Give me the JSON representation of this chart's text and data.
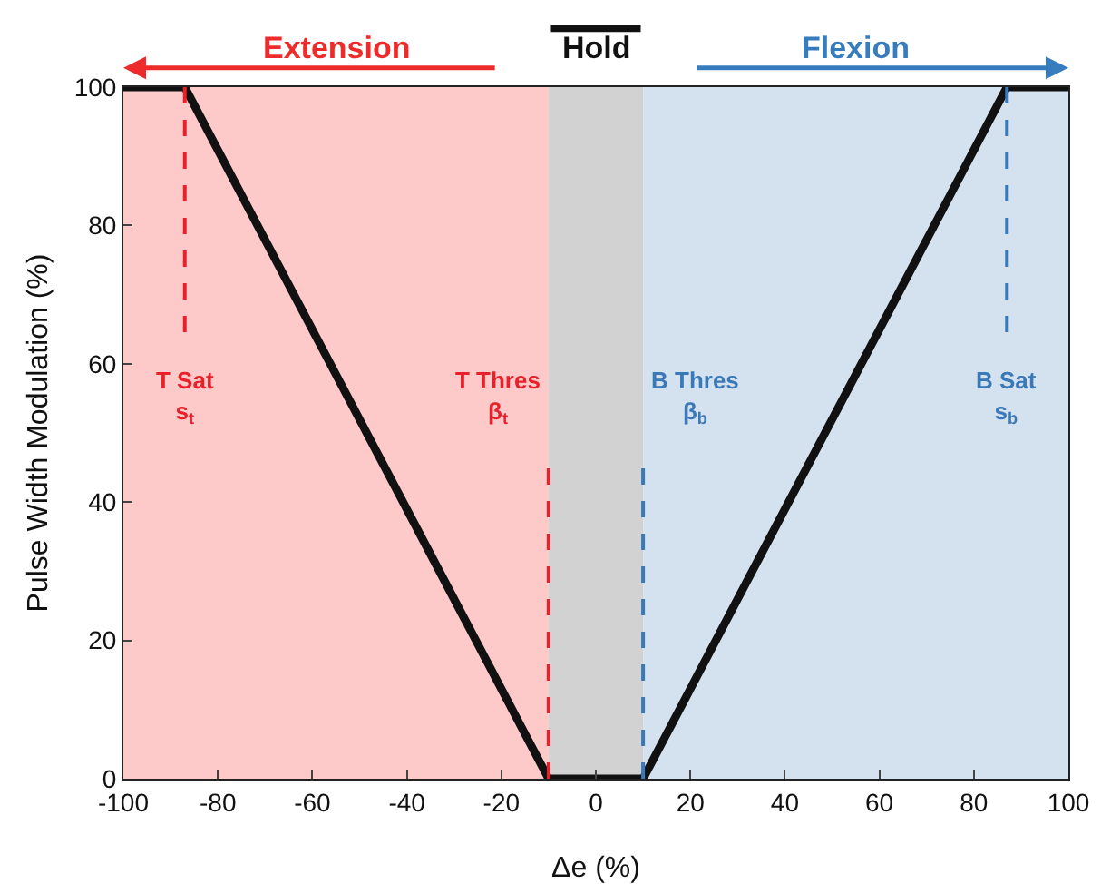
{
  "chart_data": {
    "type": "line",
    "xlabel": "Δe (%)",
    "ylabel": "Pulse Width Modulation (%)",
    "x": [
      -100,
      -87,
      -10,
      10,
      87,
      100
    ],
    "series": [
      {
        "color": "#111111",
        "values": [
          100,
          100,
          0,
          0,
          100,
          100
        ]
      }
    ],
    "xlim": [
      -100,
      100
    ],
    "xticks": [
      -100,
      -80,
      -60,
      -40,
      -20,
      0,
      20,
      40,
      60,
      80,
      100
    ],
    "ylim": [
      0,
      100
    ],
    "yticks": [
      0,
      20,
      40,
      60,
      80,
      100
    ],
    "grid": false,
    "marker": "none",
    "line_style": "solid",
    "bands": [
      {
        "axis": "x",
        "from": -100,
        "to": -10,
        "label": "Extension",
        "color": "#fdc9c9"
      },
      {
        "axis": "x",
        "from": -10,
        "to": 10,
        "label": "Hold",
        "color": "#d2d2d2"
      },
      {
        "axis": "x",
        "from": 10,
        "to": 100,
        "label": "Flexion",
        "color": "#d4e2ef"
      }
    ],
    "ref_lines": [
      {
        "axis": "x",
        "value": -87,
        "label": "T Sat\ns$_{t}$",
        "color": "#e8202a",
        "line_style": "dashed"
      },
      {
        "axis": "x",
        "value": -10,
        "label": "T Thres\nβ$_{t}$",
        "color": "#e8202a",
        "line_style": "dashed"
      },
      {
        "axis": "x",
        "value": 10,
        "label": "B Thres\nβ$_{b}$",
        "color": "#3a78b8",
        "line_style": "dashed"
      },
      {
        "axis": "x",
        "value": 87,
        "label": "B Sat\ns$_{b}$",
        "color": "#3a78b8",
        "line_style": "dashed"
      }
    ]
  }
}
